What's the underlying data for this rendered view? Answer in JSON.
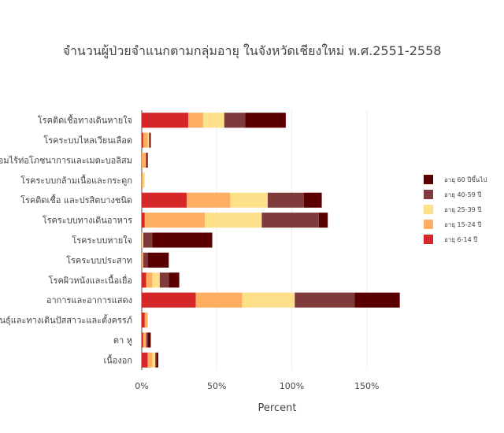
{
  "chart_data": {
    "type": "bar",
    "orientation": "horizontal",
    "stacked": true,
    "title": "จำนวนผู้ป่วยจำแนกตามกลุ่มอายุ ในจังหวัดเชียงใหม่ พ.ศ.2551-2558",
    "xlabel": "Percent",
    "ylabel": "",
    "xlim": [
      0,
      175
    ],
    "xticks": [
      0,
      50,
      100,
      150
    ],
    "xtick_labels": [
      "0%",
      "50%",
      "100%",
      "150%"
    ],
    "grid": true,
    "legend_position": "right",
    "categories": [
      "โรคติดเชื้อทางเดินหายใจ",
      "โรคระบบไหลเวียนเลือด",
      "โรคต่อมไร้ท่อโภชนาการและเมตะบอลิสม",
      "โรคระบบกล้ามเนื้อและกระดูก",
      "โรคติดเชื้อ และปรสิตบางชนิด",
      "โรคระบบทางเดินอาหาร",
      "โรคระบบหายใจ",
      "โรคระบบประสาท",
      "โรคผิวหนังและเนื้อเยื่อ",
      "อาการและอาการแสดง",
      "โรคระบบสืบพันธุ์และทางเดินปัสสาวะและตั้งครรภ์",
      "ตา หู",
      "เนื้องอก"
    ],
    "series": [
      {
        "name": "อายุ 6-14 ปี",
        "color": "#d62728",
        "values": [
          31,
          1,
          0,
          0,
          30,
          2,
          0,
          0,
          3,
          36,
          2,
          1,
          4
        ]
      },
      {
        "name": "อายุ 15-24 ปี",
        "color": "#fdae61",
        "values": [
          10,
          3,
          3,
          1,
          29,
          40,
          0,
          1,
          4,
          31,
          2,
          2,
          3
        ]
      },
      {
        "name": "อายุ 25-39 ปี",
        "color": "#fee08b",
        "values": [
          14,
          1,
          0,
          1,
          25,
          38,
          1,
          0,
          5,
          35,
          0,
          0,
          2
        ]
      },
      {
        "name": "อายุ 40-59 ปี",
        "color": "#7f3b3b",
        "values": [
          14,
          0,
          0,
          0,
          24,
          38,
          6,
          3,
          6,
          40,
          0,
          1,
          1
        ]
      },
      {
        "name": "อายุ 60 ปีขึ้นไป",
        "color": "#5a0000",
        "values": [
          27,
          1,
          1,
          0,
          12,
          6,
          40,
          14,
          7,
          30,
          0,
          2,
          1
        ]
      }
    ]
  }
}
